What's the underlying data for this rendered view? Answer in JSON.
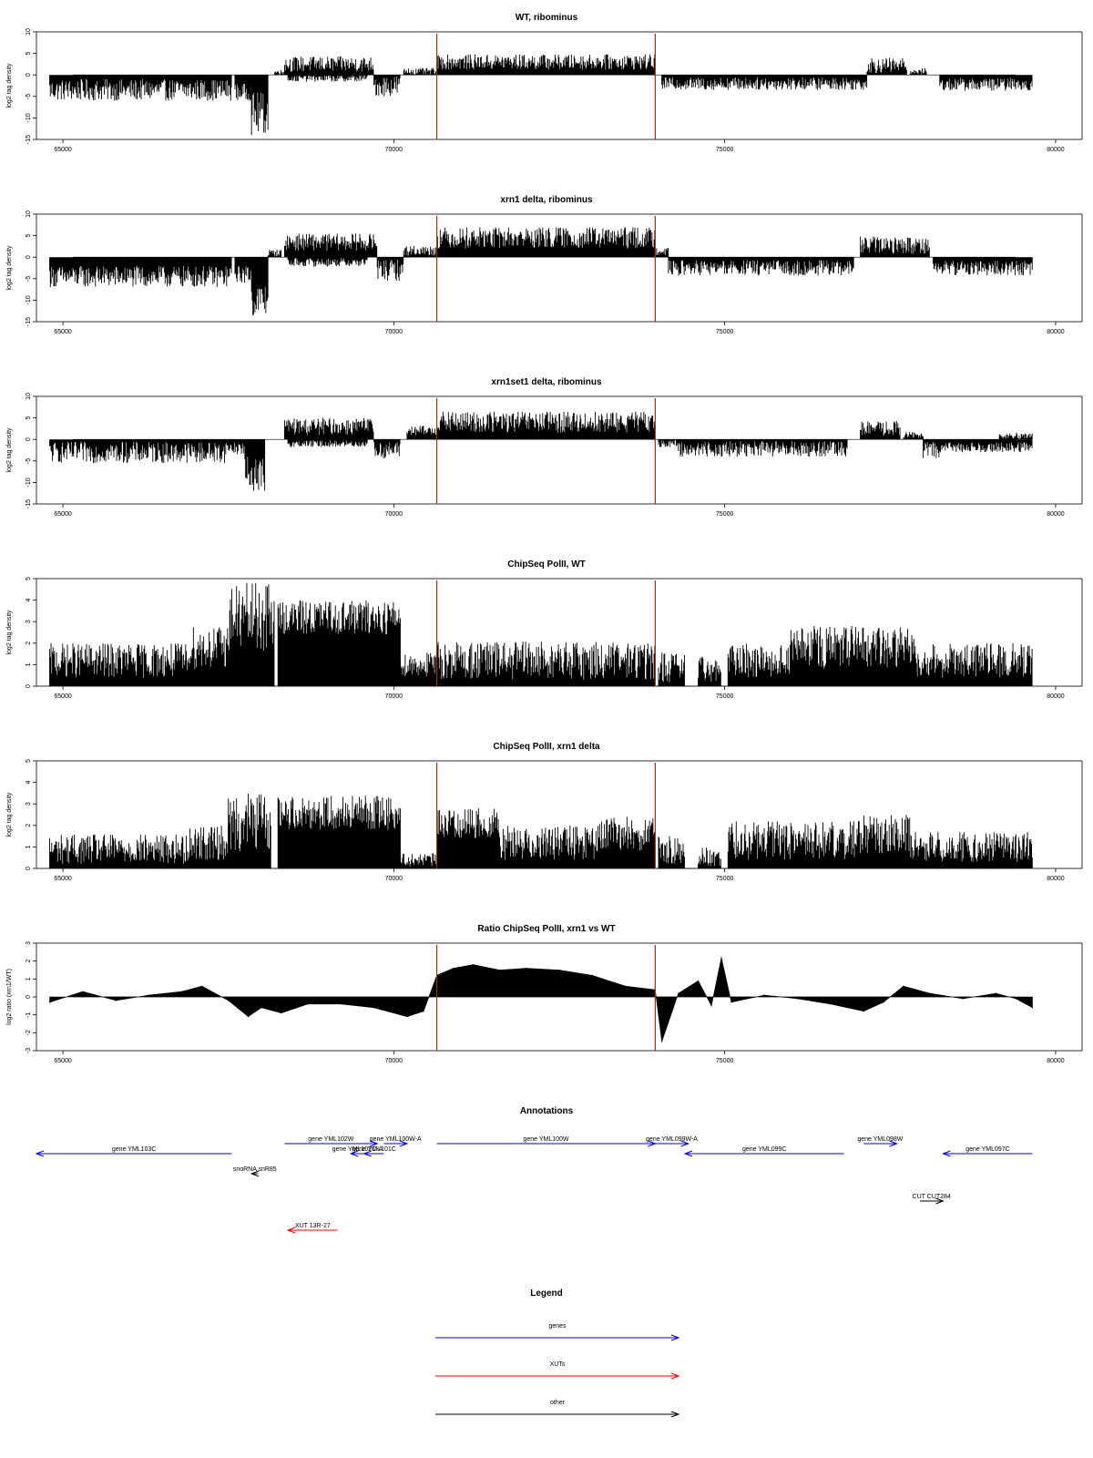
{
  "chart_data": [
    {
      "type": "bar",
      "title": "WT, ribominus",
      "ylabel": "log2 tag density",
      "xlim": [
        64600,
        80400
      ],
      "ylim": [
        -15,
        10
      ],
      "x_ticks": [
        "65000",
        "70000",
        "75000",
        "80000"
      ],
      "y_ticks": [
        "10",
        "5",
        "0",
        "-5",
        "-10",
        "-15"
      ],
      "markers": [
        70650,
        73950
      ],
      "series": [
        {
          "segments": [
            {
              "x": [
                64800,
                67550
              ],
              "y": -3.5,
              "amp": 2.5
            },
            {
              "x": [
                67600,
                67850
              ],
              "y": -4,
              "amp": 2
            },
            {
              "x": [
                67850,
                68100
              ],
              "y": -9,
              "amp": 5
            },
            {
              "x": [
                68200,
                68350
              ],
              "y": 0.6,
              "amp": 0.6
            },
            {
              "x": [
                68350,
                69700
              ],
              "y": 2.5,
              "amp": 1.8
            },
            {
              "x": [
                68400,
                69600
              ],
              "y": -0.8,
              "amp": 0.8
            },
            {
              "x": [
                69700,
                70100
              ],
              "y": -2.5,
              "amp": 2.5
            },
            {
              "x": [
                70150,
                70650
              ],
              "y": 0.8,
              "amp": 0.8
            },
            {
              "x": [
                70650,
                73950
              ],
              "y": 3,
              "amp": 1.8
            },
            {
              "x": [
                74050,
                77150
              ],
              "y": -2,
              "amp": 1.5
            },
            {
              "x": [
                77150,
                77750
              ],
              "y": 2.2,
              "amp": 1.8
            },
            {
              "x": [
                77800,
                78050
              ],
              "y": 0.8,
              "amp": 0.8
            },
            {
              "x": [
                78250,
                79650
              ],
              "y": -2.2,
              "amp": 1.5
            }
          ]
        }
      ]
    },
    {
      "type": "bar",
      "title": "xrn1 delta, ribominus",
      "ylabel": "log2 tag density",
      "xlim": [
        64600,
        80400
      ],
      "ylim": [
        -15,
        10
      ],
      "x_ticks": [
        "65000",
        "70000",
        "75000",
        "80000"
      ],
      "y_ticks": [
        "10",
        "5",
        "0",
        "-5",
        "-10",
        "-15"
      ],
      "markers": [
        70650,
        73950
      ],
      "series": [
        {
          "segments": [
            {
              "x": [
                64800,
                67550
              ],
              "y": -4.5,
              "amp": 2.5
            },
            {
              "x": [
                67600,
                67850
              ],
              "y": -4,
              "amp": 2
            },
            {
              "x": [
                67850,
                68100
              ],
              "y": -10,
              "amp": 4
            },
            {
              "x": [
                68100,
                68300
              ],
              "y": 1,
              "amp": 0.8
            },
            {
              "x": [
                68350,
                69750
              ],
              "y": 3.5,
              "amp": 2
            },
            {
              "x": [
                68400,
                69600
              ],
              "y": -1.2,
              "amp": 1
            },
            {
              "x": [
                69750,
                70150
              ],
              "y": -3,
              "amp": 2.5
            },
            {
              "x": [
                70150,
                70650
              ],
              "y": 1.5,
              "amp": 1.2
            },
            {
              "x": [
                70650,
                73950
              ],
              "y": 4.5,
              "amp": 2.5
            },
            {
              "x": [
                73950,
                74150
              ],
              "y": 1.5,
              "amp": 1
            },
            {
              "x": [
                74150,
                76950
              ],
              "y": -2.5,
              "amp": 1.8
            },
            {
              "x": [
                77050,
                78100
              ],
              "y": 2.8,
              "amp": 2
            },
            {
              "x": [
                78150,
                79650
              ],
              "y": -2.5,
              "amp": 1.8
            }
          ]
        }
      ]
    },
    {
      "type": "bar",
      "title": "xrn1set1 delta, ribominus",
      "ylabel": "log2 tag density",
      "xlim": [
        64600,
        80400
      ],
      "ylim": [
        -15,
        10
      ],
      "x_ticks": [
        "65000",
        "70000",
        "75000",
        "80000"
      ],
      "y_ticks": [
        "10",
        "5",
        "0",
        "-5",
        "-10",
        "-15"
      ],
      "markers": [
        70650,
        73950
      ],
      "series": [
        {
          "segments": [
            {
              "x": [
                64800,
                67450
              ],
              "y": -3,
              "amp": 2.5
            },
            {
              "x": [
                67450,
                67750
              ],
              "y": -2,
              "amp": 1.5
            },
            {
              "x": [
                67750,
                68050
              ],
              "y": -8,
              "amp": 4
            },
            {
              "x": [
                68350,
                69700
              ],
              "y": 3,
              "amp": 2
            },
            {
              "x": [
                68400,
                69600
              ],
              "y": -1,
              "amp": 0.8
            },
            {
              "x": [
                69700,
                70100
              ],
              "y": -2.5,
              "amp": 2
            },
            {
              "x": [
                70200,
                70650
              ],
              "y": 2,
              "amp": 1.2
            },
            {
              "x": [
                70650,
                73950
              ],
              "y": 4,
              "amp": 2.5
            },
            {
              "x": [
                74000,
                74300
              ],
              "y": -1,
              "amp": 0.8
            },
            {
              "x": [
                74300,
                76850
              ],
              "y": -2.2,
              "amp": 1.8
            },
            {
              "x": [
                77050,
                77650
              ],
              "y": 2.5,
              "amp": 1.8
            },
            {
              "x": [
                77700,
                78000
              ],
              "y": 1,
              "amp": 0.8
            },
            {
              "x": [
                78000,
                78250
              ],
              "y": -2.5,
              "amp": 2
            },
            {
              "x": [
                78250,
                79650
              ],
              "y": -1.8,
              "amp": 1.2
            },
            {
              "x": [
                79150,
                79650
              ],
              "y": 0.8,
              "amp": 0.8
            }
          ]
        }
      ]
    },
    {
      "type": "bar",
      "title": "ChipSeq PolII, WT",
      "ylabel": "log2 tag density",
      "xlim": [
        64600,
        80400
      ],
      "ylim": [
        0,
        5
      ],
      "x_ticks": [
        "65000",
        "70000",
        "75000",
        "80000"
      ],
      "y_ticks": [
        "5",
        "4",
        "3",
        "2",
        "1",
        "0"
      ],
      "markers": [
        70650,
        73950
      ],
      "series": [
        {
          "segments": [
            {
              "x": [
                64800,
                66900
              ],
              "y": 1.2,
              "amp": 0.8
            },
            {
              "x": [
                66900,
                67500
              ],
              "y": 1.8,
              "amp": 1
            },
            {
              "x": [
                67500,
                68200
              ],
              "y": 3.2,
              "amp": 1.6
            },
            {
              "x": [
                68250,
                70100
              ],
              "y": 3.2,
              "amp": 0.8
            },
            {
              "x": [
                70100,
                70650
              ],
              "y": 1,
              "amp": 0.6
            },
            {
              "x": [
                70650,
                73950
              ],
              "y": 1.2,
              "amp": 0.9
            },
            {
              "x": [
                74000,
                74400
              ],
              "y": 0.8,
              "amp": 0.8
            },
            {
              "x": [
                74600,
                74950
              ],
              "y": 0.8,
              "amp": 0.6
            },
            {
              "x": [
                75050,
                76000
              ],
              "y": 1.2,
              "amp": 0.8
            },
            {
              "x": [
                76000,
                77900
              ],
              "y": 1.8,
              "amp": 1
            },
            {
              "x": [
                77900,
                79650
              ],
              "y": 1.2,
              "amp": 0.8
            }
          ]
        }
      ]
    },
    {
      "type": "bar",
      "title": "ChipSeq PolII, xrn1 delta",
      "ylabel": "log2 tag density",
      "xlim": [
        64600,
        80400
      ],
      "ylim": [
        0,
        5
      ],
      "x_ticks": [
        "65000",
        "70000",
        "75000",
        "80000"
      ],
      "y_ticks": [
        "5",
        "4",
        "3",
        "2",
        "1",
        "0"
      ],
      "markers": [
        70650,
        73950
      ],
      "series": [
        {
          "segments": [
            {
              "x": [
                64800,
                66900
              ],
              "y": 0.9,
              "amp": 0.7
            },
            {
              "x": [
                66900,
                67500
              ],
              "y": 1.2,
              "amp": 0.8
            },
            {
              "x": [
                67500,
                68150
              ],
              "y": 2.2,
              "amp": 1.4
            },
            {
              "x": [
                68250,
                70100
              ],
              "y": 2.6,
              "amp": 0.8
            },
            {
              "x": [
                70100,
                70650
              ],
              "y": 0.4,
              "amp": 0.3
            },
            {
              "x": [
                70650,
                71600
              ],
              "y": 2.1,
              "amp": 0.7
            },
            {
              "x": [
                71600,
                73100
              ],
              "y": 1.2,
              "amp": 0.8
            },
            {
              "x": [
                73100,
                73950
              ],
              "y": 1.6,
              "amp": 0.8
            },
            {
              "x": [
                74000,
                74400
              ],
              "y": 0.8,
              "amp": 0.7
            },
            {
              "x": [
                74600,
                74950
              ],
              "y": 0.5,
              "amp": 0.5
            },
            {
              "x": [
                75050,
                77000
              ],
              "y": 1.3,
              "amp": 0.9
            },
            {
              "x": [
                77000,
                77800
              ],
              "y": 1.6,
              "amp": 0.9
            },
            {
              "x": [
                77800,
                79650
              ],
              "y": 1,
              "amp": 0.7
            }
          ]
        }
      ]
    },
    {
      "type": "area",
      "title": "Ratio ChipSeq PolII, xrn1 vs WT",
      "ylabel": "log2 ratio (xrn1/WT)",
      "xlim": [
        64600,
        80400
      ],
      "ylim": [
        -3,
        3
      ],
      "x_ticks": [
        "65000",
        "70000",
        "75000",
        "80000"
      ],
      "y_ticks": [
        "3",
        "2",
        "1",
        "0",
        "-1",
        "-2",
        "-3"
      ],
      "markers": [
        70650,
        73950
      ],
      "x": [
        64800,
        65300,
        65800,
        66300,
        66800,
        67100,
        67500,
        67800,
        68000,
        68300,
        68700,
        69200,
        69700,
        70200,
        70450,
        70650,
        70900,
        71200,
        71600,
        72000,
        72500,
        73000,
        73500,
        73950,
        74050,
        74300,
        74600,
        74800,
        74950,
        75100,
        75600,
        76100,
        76600,
        77100,
        77400,
        77700,
        78100,
        78600,
        79100,
        79400,
        79650
      ],
      "y": [
        -0.3,
        0.3,
        -0.2,
        0.1,
        0.3,
        0.6,
        -0.2,
        -1.1,
        -0.6,
        -0.9,
        -0.4,
        -0.4,
        -0.6,
        -1.1,
        -0.8,
        1.2,
        1.6,
        1.8,
        1.5,
        1.6,
        1.5,
        1.2,
        0.6,
        0.4,
        -2.5,
        0.2,
        0.9,
        -0.5,
        2.2,
        -0.3,
        0.1,
        -0.1,
        -0.4,
        -0.8,
        -0.3,
        0.6,
        0.2,
        -0.1,
        0.2,
        -0.1,
        -0.6
      ]
    },
    {
      "type": "table",
      "title": "Annotations",
      "xlim": [
        64600,
        80400
      ],
      "features": [
        {
          "label": "gene YML103C",
          "start": 67550,
          "end": 64600,
          "kind": "gene",
          "row": 1
        },
        {
          "label": "gene YML102W",
          "start": 68350,
          "end": 69750,
          "kind": "gene",
          "row": 0
        },
        {
          "label": "gene YML102C-A",
          "start": 69550,
          "end": 69350,
          "kind": "gene",
          "row": 1
        },
        {
          "label": "gene YML101C",
          "start": 69850,
          "end": 69550,
          "kind": "gene",
          "row": 1
        },
        {
          "label": "gene YML100W-A",
          "start": 69850,
          "end": 70200,
          "kind": "gene",
          "row": 0
        },
        {
          "label": "gene YML100W",
          "start": 70650,
          "end": 73950,
          "kind": "gene",
          "row": 0
        },
        {
          "label": "gene YML099W-A",
          "start": 73950,
          "end": 74450,
          "kind": "gene",
          "row": 0
        },
        {
          "label": "gene YML099C",
          "start": 76800,
          "end": 74400,
          "kind": "gene",
          "row": 1
        },
        {
          "label": "gene YML098W",
          "start": 77100,
          "end": 77600,
          "kind": "gene",
          "row": 0
        },
        {
          "label": "gene YML097C",
          "start": 79650,
          "end": 78300,
          "kind": "gene",
          "row": 1
        },
        {
          "label": "snoRNA snR85",
          "start": 67950,
          "end": 67850,
          "kind": "other",
          "row": 2
        },
        {
          "label": "CUT CUT284",
          "start": 77950,
          "end": 78300,
          "kind": "other",
          "row": 3
        },
        {
          "label": "XUT 13R-27",
          "start": 69150,
          "end": 68400,
          "kind": "xut",
          "row": 4
        }
      ]
    },
    {
      "type": "table",
      "title": "Legend",
      "entries": [
        {
          "label": "genes",
          "kind": "gene"
        },
        {
          "label": "XUTs",
          "kind": "xut"
        },
        {
          "label": "other",
          "kind": "other"
        }
      ]
    }
  ],
  "colors": {
    "data": "#000000",
    "marker": "#ff0000",
    "gene": "#0000ff",
    "xut": "#ff0000",
    "other": "#000000"
  }
}
